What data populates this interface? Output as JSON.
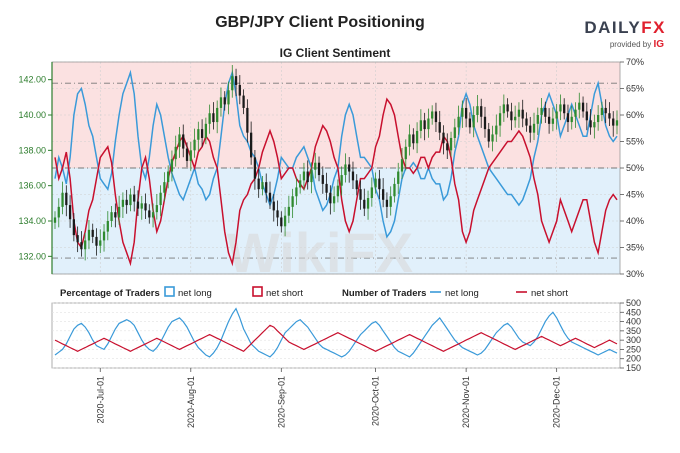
{
  "header": {
    "title": "GBP/JPY Client Positioning",
    "subtitle": "IG Client Sentiment",
    "logo_left": "DAILY",
    "logo_right": "FX",
    "provided_by": "provided by",
    "provider": "IG"
  },
  "colors": {
    "net_long": "#3a9ad9",
    "net_short": "#c8102e",
    "candle_up": "#2f8a2f",
    "candle_down": "#1a1a1a",
    "price_axis": "#2d7d2d",
    "short_zone": "#fbe1e1",
    "long_zone": "#e1f0fb"
  },
  "chart_data": [
    {
      "type": "line",
      "title": "IG Client Sentiment",
      "description_x": "dates from mid-June 2020 to early December 2020",
      "x_ticks": [
        "2020-Jul-01",
        "2020-Aug-01",
        "2020-Sep-01",
        "2020-Oct-01",
        "2020-Nov-01",
        "2020-Dec-01"
      ],
      "price_axis": {
        "ticks": [
          "132.00",
          "134.00",
          "136.00",
          "138.00",
          "140.00",
          "142.00"
        ],
        "ylim": [
          131.0,
          143.0
        ]
      },
      "percent_axis": {
        "ticks": [
          "30%",
          "35%",
          "40%",
          "45%",
          "50%",
          "55%",
          "60%",
          "65%",
          "70%"
        ],
        "ylim": [
          30,
          70
        ]
      },
      "series": [
        {
          "name": "net long",
          "unit": "%",
          "values": [
            48,
            52,
            50,
            47,
            52,
            60,
            64,
            65,
            62,
            58,
            56,
            52,
            48,
            47,
            46,
            49,
            55,
            60,
            64,
            66,
            68,
            64,
            56,
            50,
            48,
            52,
            58,
            62,
            60,
            56,
            52,
            49,
            47,
            45,
            44,
            46,
            48,
            50,
            47,
            46,
            44,
            45,
            48,
            50,
            56,
            62,
            66,
            68,
            64,
            58,
            56,
            55,
            53,
            52,
            50,
            47,
            45,
            43,
            45,
            48,
            52,
            51,
            50,
            50,
            52,
            53,
            54,
            52,
            50,
            46,
            44,
            42,
            43,
            45,
            48,
            50,
            56,
            60,
            62,
            60,
            56,
            52,
            52,
            51,
            50,
            46,
            44,
            40,
            37,
            38,
            40,
            44,
            48,
            50,
            50,
            51,
            50,
            48,
            48,
            50,
            48,
            47,
            47,
            44,
            45,
            48,
            53,
            56,
            62,
            64,
            62,
            58,
            56,
            54,
            52,
            50,
            49,
            48,
            47,
            46,
            45,
            45,
            44,
            43,
            44,
            46,
            48,
            52,
            55,
            60,
            62,
            64,
            62,
            60,
            56,
            58,
            60,
            62,
            60,
            58,
            56,
            56,
            60,
            64,
            66,
            62,
            58,
            56,
            55,
            56
          ]
        },
        {
          "name": "net short",
          "unit": "%",
          "values": [
            52,
            48,
            50,
            53,
            48,
            40,
            36,
            35,
            38,
            42,
            44,
            48,
            52,
            53,
            54,
            51,
            45,
            40,
            36,
            34,
            32,
            36,
            44,
            50,
            52,
            48,
            42,
            38,
            40,
            44,
            48,
            51,
            53,
            55,
            56,
            54,
            52,
            50,
            53,
            54,
            56,
            55,
            52,
            50,
            44,
            38,
            34,
            32,
            36,
            42,
            44,
            45,
            47,
            48,
            50,
            53,
            55,
            57,
            55,
            52,
            48,
            49,
            50,
            50,
            48,
            47,
            46,
            48,
            50,
            54,
            56,
            58,
            57,
            55,
            52,
            50,
            44,
            40,
            38,
            40,
            44,
            48,
            48,
            49,
            50,
            54,
            56,
            60,
            63,
            62,
            60,
            56,
            52,
            50,
            50,
            49,
            50,
            52,
            52,
            50,
            52,
            53,
            53,
            56,
            55,
            52,
            47,
            44,
            38,
            36,
            38,
            42,
            44,
            46,
            48,
            50,
            51,
            52,
            53,
            54,
            55,
            55,
            56,
            57,
            56,
            54,
            52,
            48,
            45,
            40,
            38,
            36,
            38,
            40,
            44,
            42,
            40,
            38,
            40,
            42,
            44,
            44,
            40,
            36,
            34,
            38,
            42,
            44,
            45,
            44
          ]
        },
        {
          "name": "GBP/JPY price",
          "type": "candlestick",
          "values": [
            134.2,
            134.8,
            135.6,
            134.9,
            134.1,
            133.2,
            132.8,
            132.4,
            132.9,
            133.5,
            133.1,
            132.6,
            132.9,
            133.4,
            134.0,
            134.5,
            134.2,
            134.8,
            135.2,
            134.9,
            135.5,
            135.1,
            134.7,
            135.0,
            134.6,
            134.2,
            134.5,
            134.9,
            135.6,
            136.2,
            136.8,
            137.5,
            138.2,
            138.9,
            138.1,
            137.4,
            138.0,
            138.6,
            139.2,
            138.7,
            139.5,
            140.1,
            139.6,
            140.4,
            141.0,
            140.6,
            141.4,
            142.2,
            141.7,
            141.1,
            140.4,
            139.0,
            137.6,
            136.4,
            135.8,
            136.2,
            135.6,
            135.1,
            134.6,
            134.2,
            133.7,
            134.3,
            134.8,
            135.4,
            135.9,
            136.3,
            136.8,
            136.2,
            136.9,
            137.3,
            136.6,
            136.1,
            135.6,
            135.0,
            135.4,
            136.0,
            136.6,
            137.2,
            136.8,
            136.3,
            135.8,
            135.2,
            134.7,
            135.3,
            135.9,
            136.4,
            135.8,
            135.2,
            134.8,
            135.4,
            136.1,
            136.8,
            137.5,
            138.2,
            138.9,
            138.4,
            139.1,
            139.7,
            139.2,
            139.8,
            140.2,
            139.6,
            139.0,
            138.4,
            138.0,
            138.7,
            139.3,
            139.9,
            140.4,
            139.8,
            139.3,
            140.0,
            140.5,
            139.9,
            139.2,
            138.5,
            138.9,
            139.4,
            140.1,
            140.6,
            140.2,
            139.7,
            139.9,
            140.3,
            139.8,
            139.4,
            139.0,
            139.5,
            140.0,
            140.4,
            139.9,
            139.5,
            139.8,
            140.2,
            140.6,
            140.1,
            139.6,
            139.9,
            140.3,
            140.7,
            140.2,
            139.7,
            139.3,
            139.6,
            140.0,
            140.4,
            140.1,
            139.8,
            139.4,
            139.7
          ]
        }
      ],
      "sentiment_zones": {
        "upper": [
          50,
          70
        ],
        "lower": [
          30,
          50
        ]
      },
      "reference_levels": [
        66,
        50,
        33
      ]
    },
    {
      "type": "line",
      "title": "Number of Traders",
      "ylim": [
        150,
        500
      ],
      "y_ticks": [
        "150",
        "200",
        "250",
        "300",
        "350",
        "400",
        "450",
        "500"
      ],
      "series": [
        {
          "name": "net long",
          "values": [
            220,
            235,
            250,
            280,
            320,
            360,
            380,
            390,
            370,
            340,
            300,
            270,
            260,
            250,
            280,
            320,
            360,
            390,
            400,
            410,
            400,
            380,
            340,
            300,
            270,
            250,
            240,
            260,
            290,
            330,
            370,
            400,
            410,
            420,
            400,
            370,
            330,
            290,
            260,
            240,
            220,
            210,
            230,
            260,
            300,
            350,
            400,
            440,
            470,
            420,
            360,
            320,
            280,
            260,
            240,
            230,
            220,
            210,
            230,
            260,
            300,
            340,
            360,
            380,
            400,
            410,
            390,
            370,
            340,
            310,
            280,
            260,
            250,
            240,
            230,
            220,
            210,
            220,
            240,
            270,
            300,
            330,
            350,
            370,
            390,
            400,
            380,
            350,
            320,
            290,
            260,
            240,
            230,
            220,
            210,
            230,
            260,
            290,
            320,
            350,
            380,
            400,
            420,
            390,
            360,
            330,
            300,
            280,
            260,
            250,
            240,
            230,
            220,
            230,
            250,
            280,
            310,
            340,
            360,
            380,
            390,
            370,
            340,
            310,
            290,
            280,
            270,
            290,
            320,
            360,
            400,
            430,
            450,
            420,
            380,
            340,
            310,
            290,
            280,
            270,
            260,
            250,
            240,
            230,
            220,
            230,
            240,
            250,
            240,
            230
          ]
        },
        {
          "name": "net short",
          "values": [
            300,
            290,
            280,
            270,
            260,
            250,
            240,
            250,
            260,
            270,
            280,
            290,
            300,
            310,
            300,
            290,
            280,
            270,
            260,
            250,
            240,
            250,
            260,
            270,
            280,
            290,
            300,
            310,
            300,
            290,
            280,
            270,
            260,
            250,
            260,
            270,
            280,
            290,
            300,
            310,
            320,
            330,
            320,
            310,
            300,
            290,
            280,
            270,
            260,
            250,
            240,
            260,
            280,
            300,
            320,
            340,
            360,
            380,
            370,
            350,
            330,
            310,
            290,
            280,
            270,
            260,
            250,
            260,
            270,
            280,
            290,
            300,
            310,
            320,
            330,
            340,
            330,
            320,
            310,
            300,
            290,
            280,
            270,
            260,
            250,
            240,
            250,
            260,
            270,
            280,
            290,
            300,
            310,
            320,
            330,
            320,
            310,
            300,
            290,
            280,
            270,
            260,
            250,
            240,
            250,
            260,
            270,
            280,
            290,
            300,
            310,
            320,
            330,
            340,
            330,
            320,
            310,
            300,
            290,
            280,
            270,
            260,
            250,
            260,
            270,
            280,
            290,
            300,
            310,
            320,
            310,
            300,
            290,
            280,
            270,
            280,
            290,
            300,
            310,
            300,
            290,
            280,
            270,
            260,
            270,
            280,
            290,
            300,
            290,
            280
          ]
        }
      ]
    }
  ],
  "legend": {
    "pct_title": "Percentage of Traders",
    "pct_long": "net long",
    "pct_short": "net short",
    "num_title": "Number of Traders",
    "num_long": "net long",
    "num_short": "net short"
  },
  "watermark": "WikiFX"
}
